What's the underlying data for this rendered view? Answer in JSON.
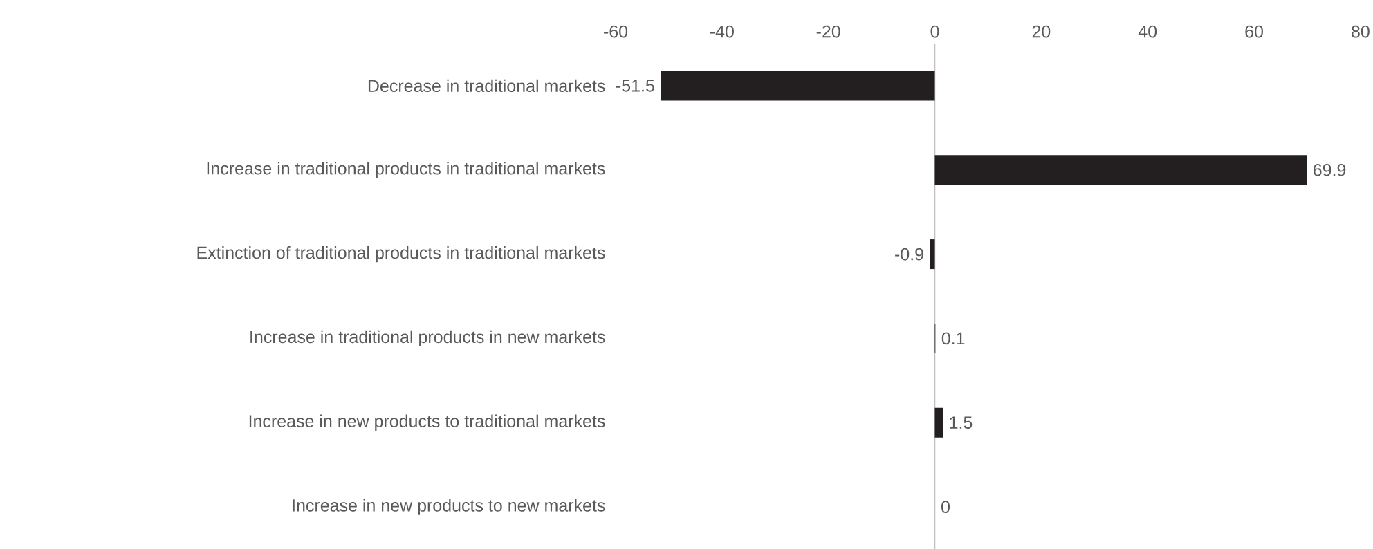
{
  "chart_data": {
    "type": "bar",
    "orientation": "horizontal",
    "categories": [
      "Decrease in traditional markets",
      "Increase in traditional products in traditional markets",
      "Extinction of traditional products in traditional markets",
      "Increase in traditional products in new markets",
      "Increase in new products to traditional markets",
      "Increase in new products to new markets"
    ],
    "values": [
      -51.5,
      69.9,
      -0.9,
      0.1,
      1.5,
      0
    ],
    "color": "#231f20",
    "xlim": [
      -60,
      80
    ],
    "xticks": [
      -60,
      -40,
      -20,
      0,
      20,
      40,
      60,
      80
    ],
    "data_labels": true
  }
}
